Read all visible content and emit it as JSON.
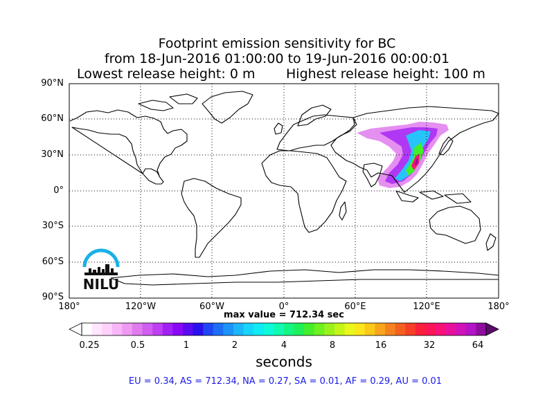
{
  "title": {
    "line1": "Footprint emission sensitivity for BC",
    "line2": "from 18-Jun-2016 01:00:00 to 19-Jun-2016 00:00:01",
    "line3_left": "Lowest release height: 0 m",
    "line3_right": "Highest release height: 100 m"
  },
  "map": {
    "lat_labels": [
      "90°N",
      "60°N",
      "30°N",
      "0°",
      "30°S",
      "60°S",
      "90°S"
    ],
    "lon_labels": [
      "180°",
      "120°W",
      "60°W",
      "0°",
      "60°E",
      "120°E",
      "180°"
    ],
    "grid": "dotted",
    "projection": "equirectangular",
    "plume_region": "East Asia",
    "colors": {
      "coast": "#000000",
      "grid": "#000000"
    }
  },
  "max_value_text": "max value = 712.34 sec",
  "colorbar": {
    "tick_labels": [
      "0.25",
      "0.5",
      "1",
      "2",
      "4",
      "8",
      "16",
      "32",
      "64"
    ],
    "units": "seconds",
    "colors": [
      "#ffffff",
      "#ffe6ff",
      "#ffd1fb",
      "#f7b6f7",
      "#ee99f2",
      "#e07bee",
      "#d05ef0",
      "#be3ff2",
      "#a320f4",
      "#8808f7",
      "#5a0bf2",
      "#2a10ed",
      "#1f45f5",
      "#1d6ef7",
      "#1c92fa",
      "#1cb6fc",
      "#17d4fb",
      "#10ecf3",
      "#0dfad9",
      "#10fbb2",
      "#14f683",
      "#1ef05a",
      "#44ee2a",
      "#6ff020",
      "#9af21c",
      "#c4f519",
      "#eaf71a",
      "#fbe51b",
      "#fcc91b",
      "#f8a51d",
      "#f5821f",
      "#f46020",
      "#f73f27",
      "#fa1f3c",
      "#fb1458",
      "#f9117a",
      "#e8119d",
      "#d012b8",
      "#b413c6",
      "#8e0d9f"
    ],
    "extend_left": "#ffffff",
    "extend_right": "#5e0b6b"
  },
  "regions_text": "EU = 0.34,  AS = 712.34,  NA = 0.27,  SA = 0.01,  AF = 0.29,  AU = 0.01",
  "logo": {
    "text": "NILU",
    "arc_color": "#1ab0e8"
  }
}
